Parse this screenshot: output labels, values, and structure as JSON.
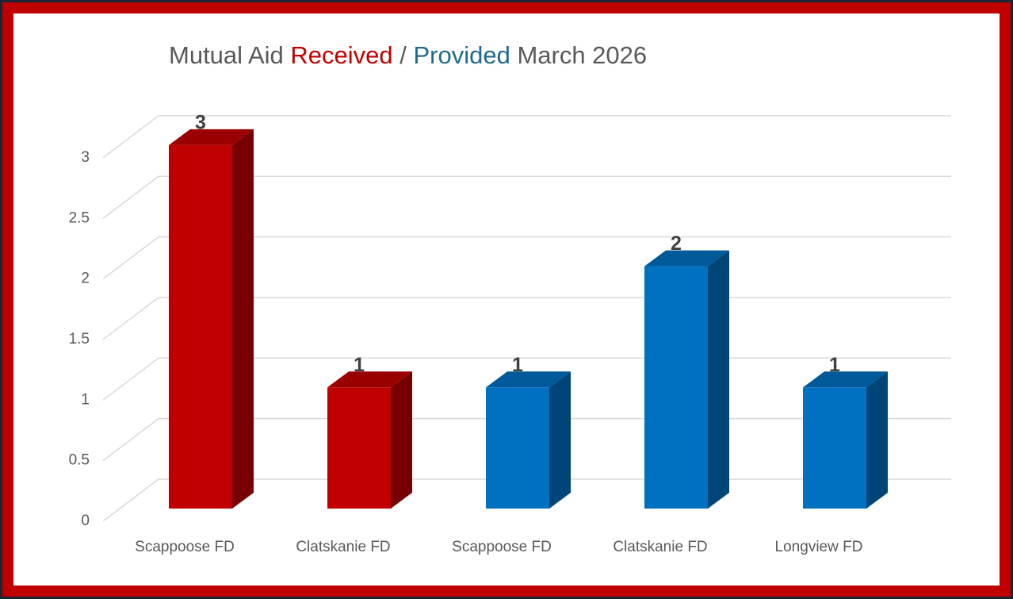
{
  "chart_data": {
    "type": "bar3d",
    "title_parts": [
      {
        "text": "Mutual Aid ",
        "color": "#595959"
      },
      {
        "text": "Received",
        "color": "#c00000"
      },
      {
        "text": " / ",
        "color": "#595959"
      },
      {
        "text": "Provided",
        "color": "#1f6b8e"
      },
      {
        "text": " March 2026",
        "color": "#595959"
      }
    ],
    "categories": [
      "Scappoose FD",
      "Clatskanie FD",
      "Scappoose FD",
      "Clatskanie FD",
      "Longview FD"
    ],
    "values": [
      3,
      1,
      1,
      2,
      1
    ],
    "colors": [
      "#c00000",
      "#c00000",
      "#0070c0",
      "#0070c0",
      "#0070c0"
    ],
    "ylim": [
      0,
      3
    ],
    "yticks": [
      0,
      0.5,
      1,
      1.5,
      2,
      2.5,
      3
    ],
    "grid": true,
    "data_labels": true
  }
}
